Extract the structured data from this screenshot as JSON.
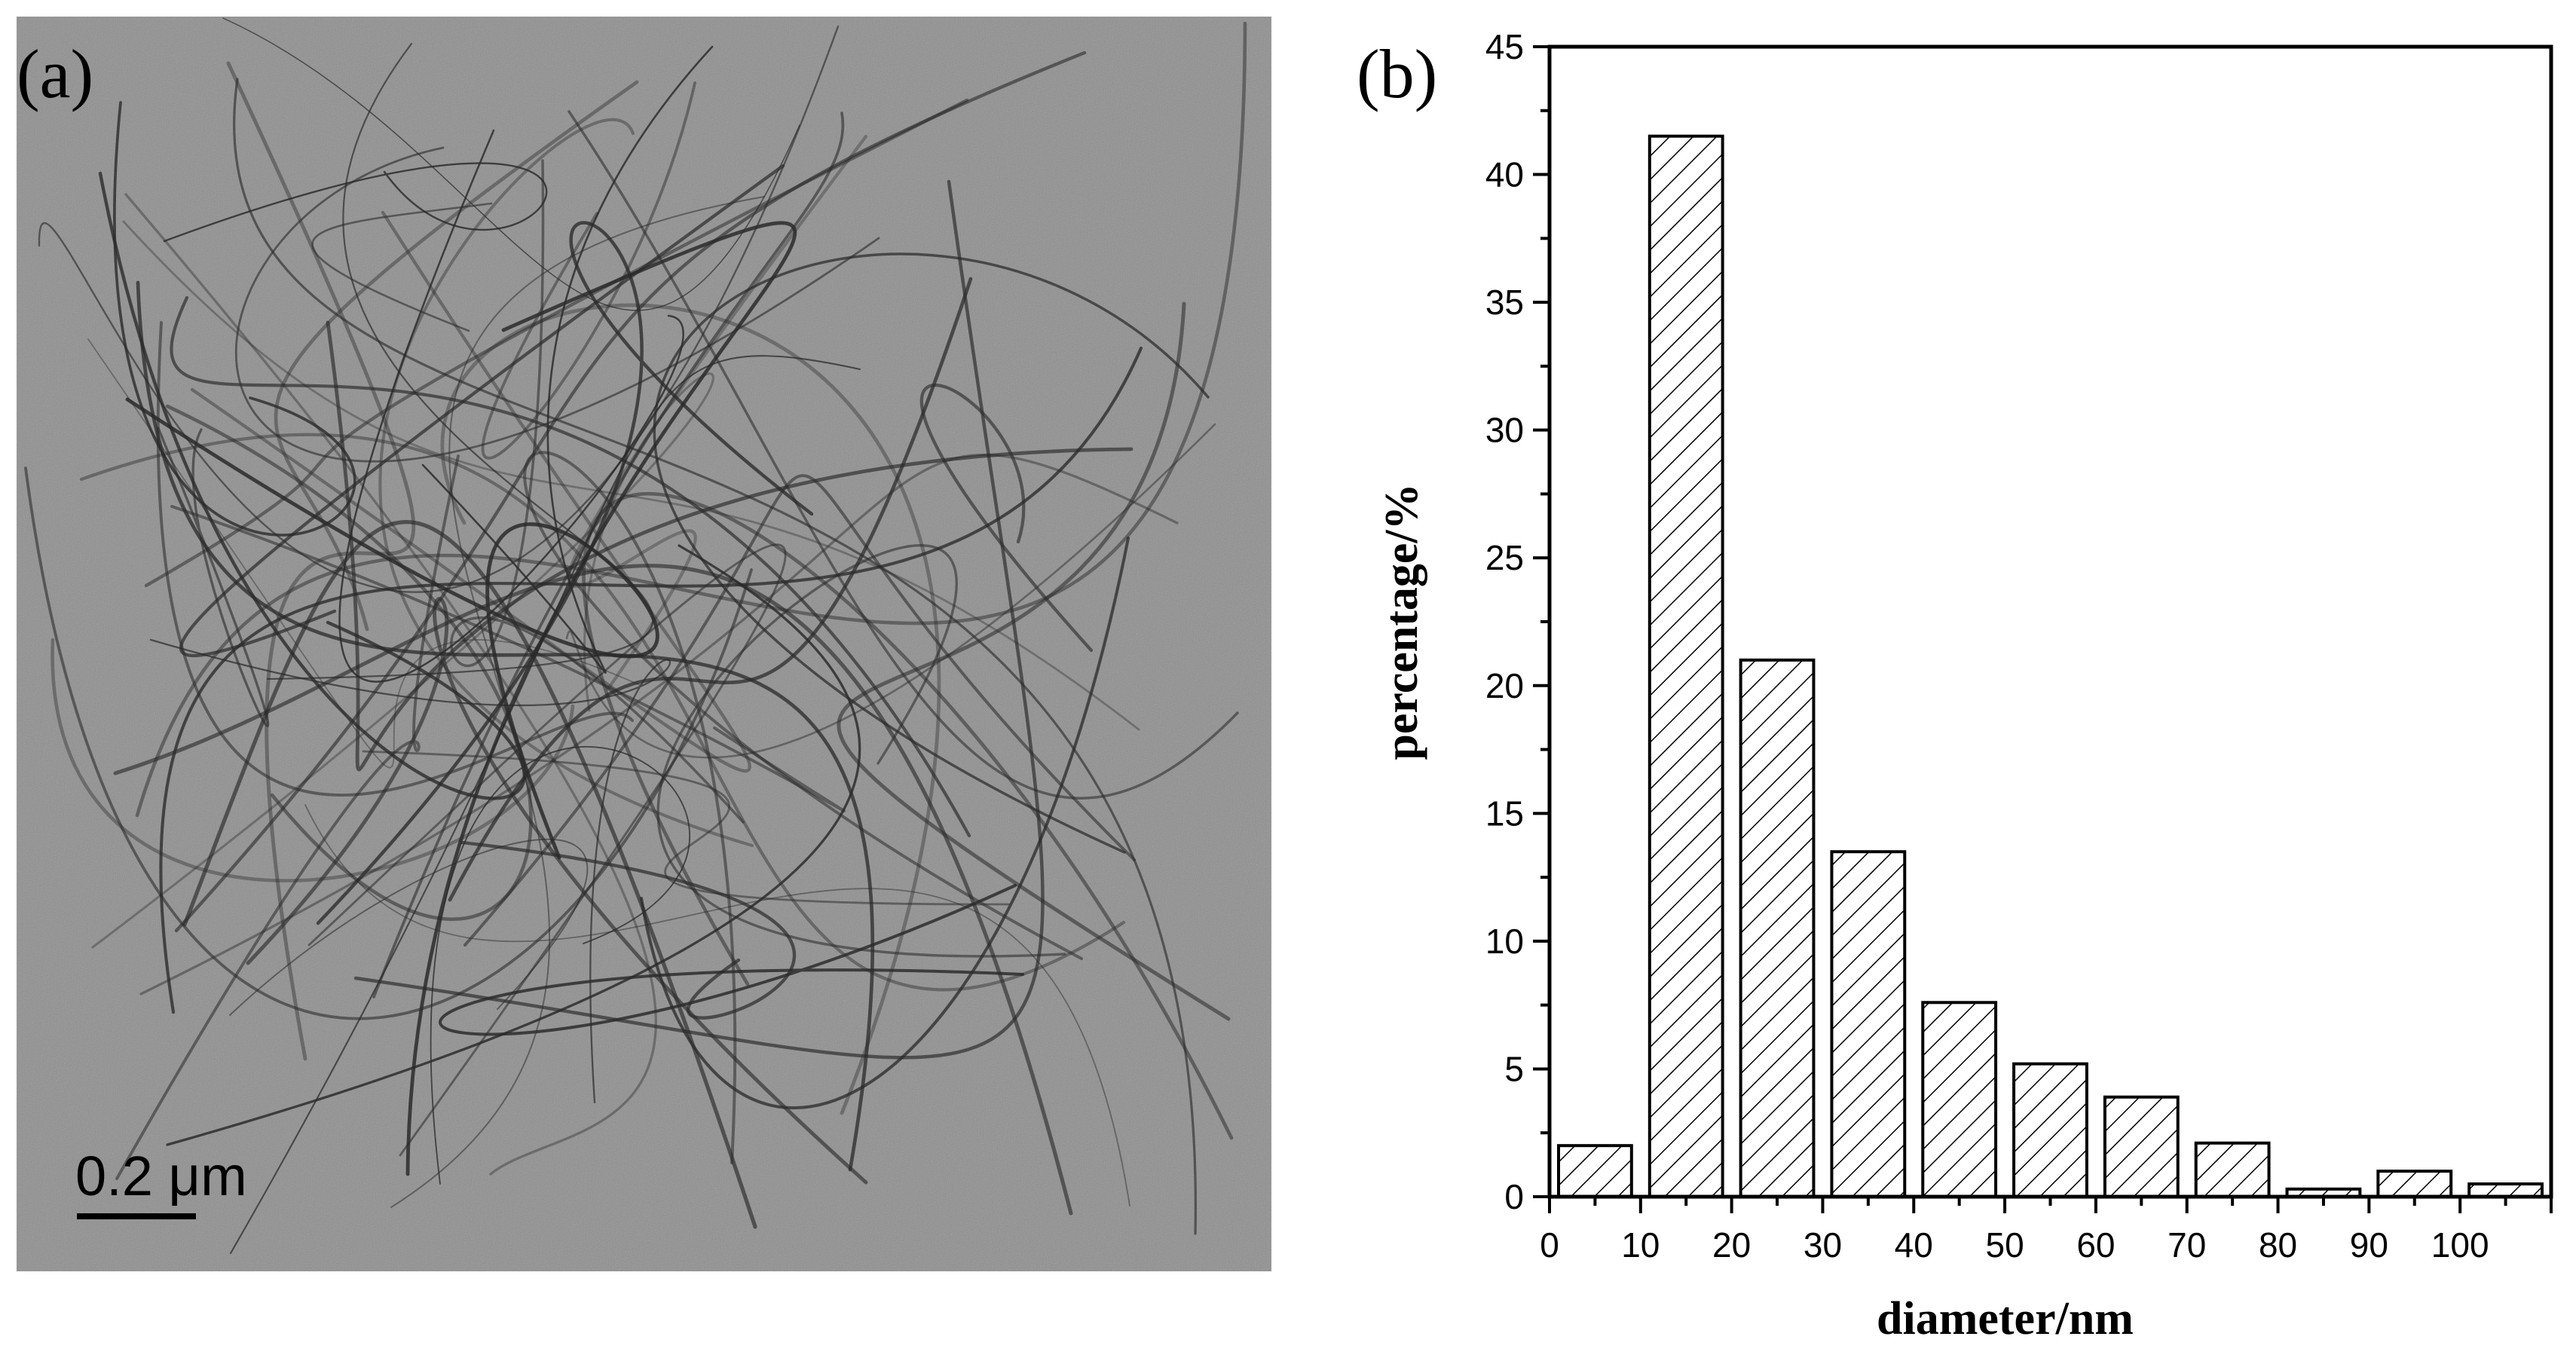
{
  "panel_a": {
    "label": "(a)",
    "scale_bar_text": "0.2 μm"
  },
  "panel_b": {
    "label": "(b)"
  },
  "chart_data": {
    "type": "bar",
    "x": [
      5,
      15,
      25,
      35,
      45,
      55,
      65,
      75,
      85,
      95,
      105
    ],
    "bin_width": 10,
    "values": [
      2.0,
      41.5,
      21.0,
      13.5,
      7.6,
      5.2,
      3.9,
      2.1,
      0.3,
      1.0,
      0.5
    ],
    "xlabel": "diameter/nm",
    "ylabel": "percentage/%",
    "xlim": [
      0,
      110
    ],
    "ylim": [
      0,
      45
    ],
    "xticks": [
      0,
      10,
      20,
      30,
      40,
      50,
      60,
      70,
      80,
      90,
      100
    ],
    "yticks": [
      0,
      5,
      10,
      15,
      20,
      25,
      30,
      35,
      40,
      45
    ],
    "bar_fill": "hatched diagonal",
    "bar_color": "#000000",
    "grid": false,
    "legend": false
  }
}
